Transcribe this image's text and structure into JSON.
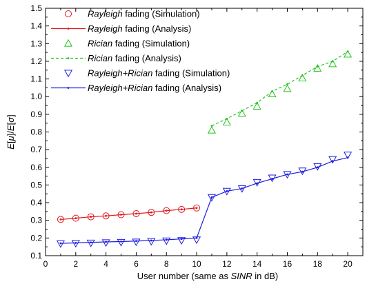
{
  "chart_data": {
    "type": "line",
    "xlabel_parts": [
      "User number (same as ",
      "SINR",
      " in dB)"
    ],
    "ylabel_parts": [
      "E",
      "[",
      "μ",
      "]/",
      "E",
      "[",
      "σ",
      "]"
    ],
    "xlim": [
      0,
      21
    ],
    "ylim": [
      0.1,
      1.5
    ],
    "xticks": [
      0,
      2,
      4,
      6,
      8,
      10,
      12,
      14,
      16,
      18,
      20
    ],
    "yticks": [
      0.1,
      0.2,
      0.3,
      0.4,
      0.5,
      0.6,
      0.7,
      0.8,
      0.9,
      1.0,
      1.1,
      1.2,
      1.3,
      1.4,
      1.5
    ],
    "xtick_labels": [
      "0",
      "2",
      "4",
      "6",
      "8",
      "10",
      "12",
      "14",
      "16",
      "18",
      "20"
    ],
    "ytick_labels": [
      "0.1",
      "0.2",
      "0.3",
      "0.4",
      "0.5",
      "0.6",
      "0.7",
      "0.8",
      "0.9",
      "1.0",
      "1.1",
      "1.2",
      "1.3",
      "1.4",
      "1.5"
    ],
    "grid": false,
    "legend_position": "top-left",
    "series": [
      {
        "name_parts": [
          "Rayleigh",
          " fading (Simulation)"
        ],
        "kind": "marker",
        "marker": "circle",
        "color": "#e0151b",
        "x": [
          1,
          2,
          3,
          4,
          5,
          6,
          7,
          8,
          9,
          10
        ],
        "y": [
          0.305,
          0.312,
          0.32,
          0.325,
          0.332,
          0.338,
          0.345,
          0.355,
          0.362,
          0.37
        ]
      },
      {
        "name_parts": [
          "Rayleigh",
          " fading (Analysis)"
        ],
        "kind": "line",
        "dash": "solid",
        "color": "#e0151b",
        "x": [
          1,
          2,
          3,
          4,
          5,
          6,
          7,
          8,
          9,
          10
        ],
        "y": [
          0.305,
          0.312,
          0.32,
          0.325,
          0.332,
          0.338,
          0.345,
          0.355,
          0.362,
          0.37
        ]
      },
      {
        "name_parts": [
          "Rician",
          " fading (Simulation)"
        ],
        "kind": "marker",
        "marker": "triangle-up",
        "color": "#22c41c",
        "x": [
          11,
          12,
          13,
          14,
          15,
          16,
          17,
          18,
          19,
          20
        ],
        "y": [
          0.81,
          0.855,
          0.905,
          0.945,
          1.015,
          1.045,
          1.105,
          1.16,
          1.185,
          1.24
        ]
      },
      {
        "name_parts": [
          "Rician",
          " fading (Analysis)"
        ],
        "kind": "line",
        "dash": "dashed",
        "color": "#22c41c",
        "x": [
          11,
          12,
          13,
          14,
          15,
          16,
          17,
          18,
          19,
          20
        ],
        "y": [
          0.835,
          0.875,
          0.92,
          0.965,
          1.03,
          1.07,
          1.12,
          1.17,
          1.2,
          1.255
        ]
      },
      {
        "name_parts": [
          "Rayleigh+Rician",
          " fading (Simulation)"
        ],
        "kind": "marker",
        "marker": "triangle-down",
        "color": "#1c1ce0",
        "x": [
          1,
          2,
          3,
          4,
          5,
          6,
          7,
          8,
          9,
          10,
          11,
          12,
          13,
          14,
          15,
          16,
          17,
          18,
          19,
          20
        ],
        "y": [
          0.168,
          0.17,
          0.172,
          0.174,
          0.176,
          0.178,
          0.181,
          0.184,
          0.186,
          0.19,
          0.43,
          0.465,
          0.48,
          0.515,
          0.54,
          0.56,
          0.58,
          0.605,
          0.645,
          0.67
        ]
      },
      {
        "name_parts": [
          "Rayleigh+Rician",
          " fading (Analysis)"
        ],
        "kind": "line",
        "dash": "solid",
        "color": "#1c1ce0",
        "x": [
          1,
          2,
          3,
          4,
          5,
          6,
          7,
          8,
          9,
          10,
          11,
          12,
          13,
          14,
          15,
          16,
          17,
          18,
          19,
          20
        ],
        "y": [
          0.17,
          0.172,
          0.175,
          0.178,
          0.18,
          0.183,
          0.186,
          0.19,
          0.195,
          0.2,
          0.43,
          0.465,
          0.48,
          0.51,
          0.535,
          0.56,
          0.575,
          0.6,
          0.635,
          0.655
        ]
      }
    ]
  }
}
